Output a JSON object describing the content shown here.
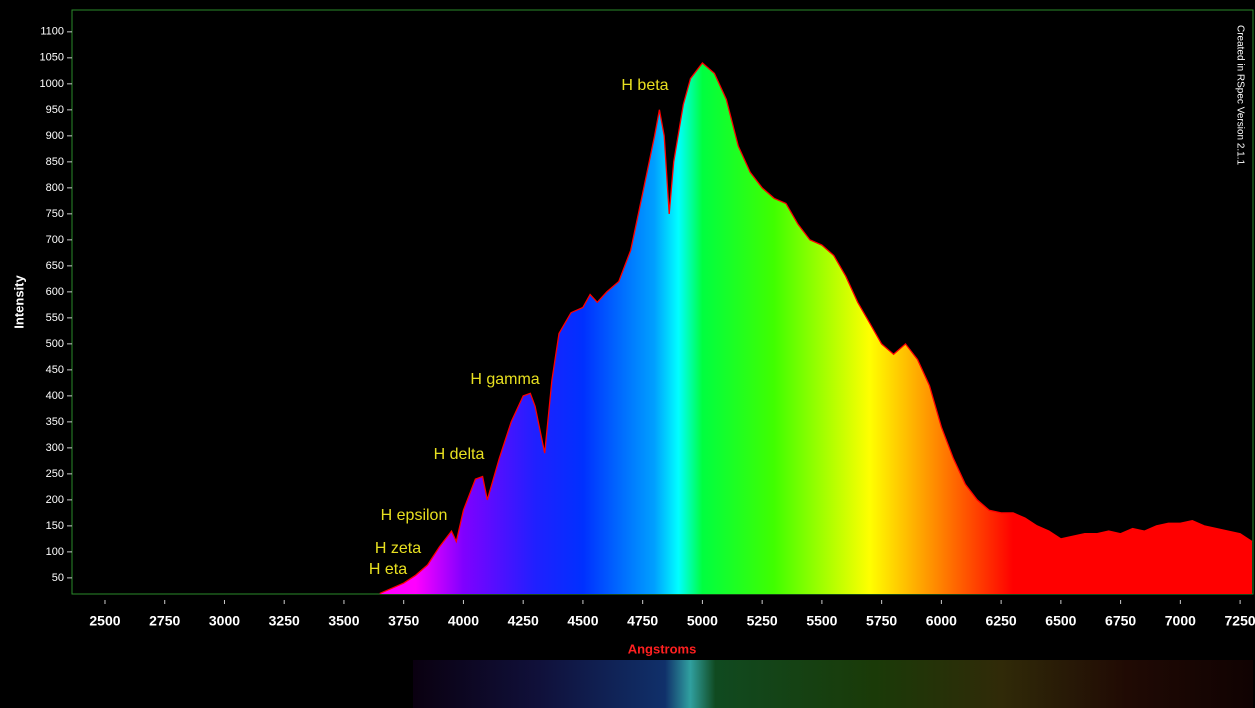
{
  "chart_data": {
    "type": "area",
    "x_label": "Angstroms",
    "y_label": "Intensity",
    "credit": "Created in RSpec Version 2.1.1",
    "annotations": [
      "H beta",
      "H gamma",
      "H delta",
      "H epsilon",
      "H zeta",
      "H eta"
    ],
    "color": "#ff0000",
    "x": [
      3650,
      3700,
      3750,
      3800,
      3850,
      3900,
      3950,
      3970,
      4000,
      4050,
      4080,
      4100,
      4150,
      4200,
      4250,
      4280,
      4300,
      4340,
      4370,
      4400,
      4450,
      4500,
      4530,
      4560,
      4600,
      4650,
      4700,
      4750,
      4800,
      4820,
      4840,
      4861,
      4880,
      4920,
      4950,
      5000,
      5050,
      5100,
      5150,
      5200,
      5250,
      5300,
      5350,
      5400,
      5450,
      5500,
      5550,
      5600,
      5650,
      5700,
      5750,
      5800,
      5850,
      5900,
      5950,
      6000,
      6050,
      6100,
      6150,
      6200,
      6250,
      6300,
      6350,
      6400,
      6450,
      6500,
      6550,
      6600,
      6650,
      6700,
      6750,
      6800,
      6850,
      6900,
      6950,
      7000,
      7050,
      7100,
      7150,
      7200,
      7250,
      7300
    ],
    "values": [
      20,
      30,
      40,
      55,
      75,
      110,
      140,
      120,
      180,
      240,
      245,
      200,
      280,
      350,
      400,
      405,
      380,
      290,
      430,
      520,
      560,
      570,
      595,
      580,
      600,
      620,
      680,
      790,
      900,
      950,
      900,
      750,
      850,
      960,
      1010,
      1040,
      1020,
      970,
      880,
      830,
      800,
      780,
      770,
      730,
      700,
      690,
      670,
      630,
      580,
      540,
      500,
      480,
      500,
      470,
      420,
      340,
      280,
      230,
      200,
      180,
      175,
      175,
      165,
      150,
      140,
      125,
      130,
      135,
      135,
      140,
      135,
      145,
      140,
      150,
      155,
      155,
      160,
      150,
      145,
      140,
      135,
      120
    ],
    "xlim": [
      2362,
      7304
    ],
    "ylim": [
      19,
      1142
    ],
    "xticks": [
      2500,
      2750,
      3000,
      3250,
      3500,
      3750,
      4000,
      4250,
      4500,
      4750,
      5000,
      5250,
      5500,
      5750,
      6000,
      6250,
      6500,
      6750,
      7000,
      7250
    ],
    "yticks": [
      50,
      100,
      150,
      200,
      250,
      300,
      350,
      400,
      450,
      500,
      550,
      600,
      650,
      700,
      750,
      800,
      850,
      900,
      950,
      1000,
      1050,
      1100
    ]
  }
}
